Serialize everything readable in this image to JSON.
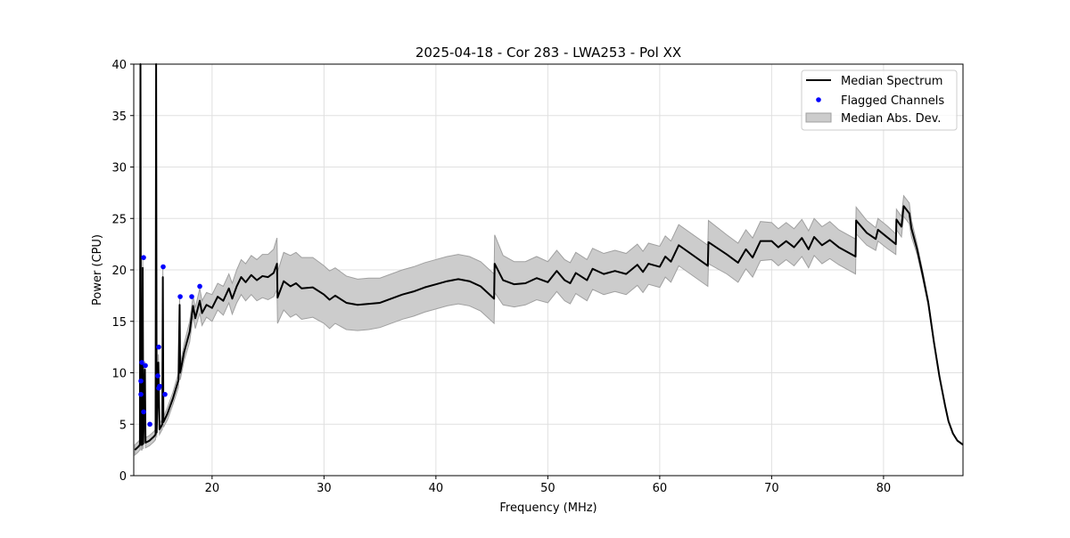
{
  "chart_data": {
    "type": "line",
    "title": "2025-04-18 - Cor 283 - LWA253 - Pol XX",
    "xlabel": "Frequency (MHz)",
    "ylabel": "Power (CPU)",
    "xlim": [
      13.0,
      87.1
    ],
    "ylim": [
      0,
      40
    ],
    "xticks": [
      20,
      30,
      40,
      50,
      60,
      70,
      80
    ],
    "yticks": [
      0,
      5,
      10,
      15,
      20,
      25,
      30,
      35,
      40
    ],
    "grid": true,
    "legend": {
      "placement": "top-right",
      "entries": [
        "Median Spectrum",
        "Flagged Channels",
        "Median Abs. Dev."
      ]
    },
    "colors": {
      "median": "#000000",
      "flagged": "#0000ff",
      "mad_fill": "#cccccc",
      "mad_edge": "#a0a0a0"
    },
    "series": [
      {
        "name": "Median Spectrum",
        "columns": [
          "freq_mhz",
          "median",
          "mad"
        ],
        "points": [
          [
            13.1,
            2.5,
            0.5
          ],
          [
            13.4,
            2.8,
            0.5
          ],
          [
            13.55,
            3,
            0.5
          ],
          [
            13.6,
            40,
            3
          ],
          [
            13.65,
            3,
            0.5
          ],
          [
            13.75,
            3,
            0.5
          ],
          [
            13.8,
            20.2,
            1
          ],
          [
            13.85,
            3.1,
            0.5
          ],
          [
            14.0,
            10.3,
            0.8
          ],
          [
            14.05,
            3.2,
            0.5
          ],
          [
            14.4,
            3.4,
            0.5
          ],
          [
            14.8,
            3.8,
            0.5
          ],
          [
            14.95,
            4,
            0.5
          ],
          [
            15.0,
            40,
            3
          ],
          [
            15.05,
            4.2,
            0.5
          ],
          [
            15.2,
            11,
            0.8
          ],
          [
            15.3,
            4.5,
            0.5
          ],
          [
            15.55,
            5,
            0.5
          ],
          [
            15.6,
            19.3,
            1
          ],
          [
            15.65,
            5.2,
            0.5
          ],
          [
            16.0,
            6,
            0.6
          ],
          [
            16.5,
            7.5,
            0.6
          ],
          [
            17.0,
            9.3,
            0.7
          ],
          [
            17.1,
            16.6,
            1
          ],
          [
            17.15,
            10,
            0.7
          ],
          [
            17.5,
            12,
            0.8
          ],
          [
            18.0,
            14,
            1
          ],
          [
            18.3,
            16.5,
            1
          ],
          [
            18.5,
            15.3,
            1
          ],
          [
            18.9,
            17,
            1.2
          ],
          [
            19.1,
            15.8,
            1.2
          ],
          [
            19.5,
            16.6,
            1.2
          ],
          [
            20.0,
            16.3,
            1.3
          ],
          [
            20.5,
            17.4,
            1.3
          ],
          [
            21.0,
            17.0,
            1.4
          ],
          [
            21.5,
            18.2,
            1.4
          ],
          [
            21.8,
            17.2,
            1.5
          ],
          [
            22.2,
            18.4,
            1.6
          ],
          [
            22.6,
            19.3,
            1.7
          ],
          [
            23.0,
            18.8,
            1.8
          ],
          [
            23.5,
            19.5,
            1.9
          ],
          [
            24.0,
            19.0,
            2.0
          ],
          [
            24.5,
            19.4,
            2.1
          ],
          [
            25.0,
            19.3,
            2.2
          ],
          [
            25.5,
            19.7,
            2.3
          ],
          [
            25.8,
            20.6,
            2.5
          ],
          [
            25.85,
            17.3,
            2.5
          ],
          [
            26.4,
            18.9,
            2.8
          ],
          [
            27.0,
            18.4,
            3.0
          ],
          [
            27.5,
            18.7,
            3.0
          ],
          [
            28.0,
            18.2,
            3.0
          ],
          [
            29.0,
            18.3,
            2.9
          ],
          [
            30.0,
            17.6,
            2.8
          ],
          [
            30.5,
            17.1,
            2.8
          ],
          [
            31.0,
            17.5,
            2.7
          ],
          [
            32.0,
            16.8,
            2.6
          ],
          [
            33.0,
            16.6,
            2.5
          ],
          [
            34.0,
            16.7,
            2.5
          ],
          [
            35.0,
            16.8,
            2.4
          ],
          [
            36.0,
            17.2,
            2.4
          ],
          [
            37.0,
            17.6,
            2.4
          ],
          [
            38.0,
            17.9,
            2.4
          ],
          [
            39.0,
            18.3,
            2.4
          ],
          [
            40.0,
            18.6,
            2.4
          ],
          [
            41.0,
            18.9,
            2.4
          ],
          [
            42.0,
            19.1,
            2.4
          ],
          [
            43.0,
            18.9,
            2.4
          ],
          [
            44.0,
            18.4,
            2.4
          ],
          [
            45.2,
            17.2,
            2.4
          ],
          [
            45.25,
            20.6,
            2.8
          ],
          [
            46.0,
            19.0,
            2.4
          ],
          [
            47.0,
            18.6,
            2.2
          ],
          [
            48.0,
            18.7,
            2.1
          ],
          [
            49.0,
            19.2,
            2.1
          ],
          [
            50.0,
            18.8,
            2.0
          ],
          [
            50.8,
            19.9,
            2.0
          ],
          [
            51.5,
            19.0,
            2.0
          ],
          [
            52.0,
            18.7,
            2.0
          ],
          [
            52.5,
            19.7,
            2.0
          ],
          [
            53.5,
            19.0,
            2.0
          ],
          [
            54.0,
            20.1,
            2.0
          ],
          [
            55.0,
            19.6,
            2.0
          ],
          [
            56.0,
            19.9,
            2.0
          ],
          [
            57.0,
            19.6,
            2.0
          ],
          [
            58.0,
            20.5,
            2.0
          ],
          [
            58.5,
            19.8,
            2.0
          ],
          [
            59.0,
            20.6,
            2.0
          ],
          [
            60.0,
            20.3,
            2.0
          ],
          [
            60.5,
            21.3,
            2.0
          ],
          [
            61.0,
            20.8,
            2.0
          ],
          [
            61.7,
            22.4,
            2.0
          ],
          [
            64.3,
            20.4,
            2.0
          ],
          [
            64.35,
            22.7,
            2.1
          ],
          [
            66.0,
            21.5,
            1.9
          ],
          [
            67.0,
            20.7,
            1.9
          ],
          [
            67.7,
            22.0,
            1.9
          ],
          [
            68.3,
            21.2,
            1.9
          ],
          [
            69.0,
            22.8,
            1.9
          ],
          [
            70.0,
            22.8,
            1.8
          ],
          [
            70.6,
            22.2,
            1.8
          ],
          [
            71.3,
            22.8,
            1.8
          ],
          [
            72.0,
            22.2,
            1.8
          ],
          [
            72.7,
            23.1,
            1.8
          ],
          [
            73.3,
            22.0,
            1.8
          ],
          [
            73.8,
            23.2,
            1.8
          ],
          [
            74.5,
            22.4,
            1.8
          ],
          [
            75.2,
            22.9,
            1.8
          ],
          [
            76.0,
            22.2,
            1.7
          ],
          [
            77.5,
            21.3,
            1.7
          ],
          [
            77.55,
            24.8,
            1.3
          ],
          [
            78.5,
            23.6,
            1.2
          ],
          [
            79.3,
            23.0,
            1.1
          ],
          [
            79.5,
            23.9,
            1.1
          ],
          [
            80.3,
            23.2,
            1.1
          ],
          [
            81.1,
            22.5,
            1.0
          ],
          [
            81.15,
            24.9,
            1.0
          ],
          [
            81.6,
            24.2,
            1.0
          ],
          [
            81.8,
            26.2,
            1.0
          ],
          [
            82.3,
            25.5,
            1.0
          ],
          [
            82.5,
            24.0,
            0.8
          ],
          [
            83.0,
            22.0,
            0.5
          ],
          [
            83.5,
            19.5,
            0.4
          ],
          [
            84.0,
            16.8,
            0.3
          ],
          [
            84.5,
            13.0,
            0.2
          ],
          [
            85.0,
            9.6,
            0.1
          ],
          [
            85.5,
            6.8,
            0.1
          ],
          [
            85.8,
            5.3,
            0.05
          ],
          [
            86.2,
            4.1,
            0.05
          ],
          [
            86.6,
            3.4,
            0.05
          ],
          [
            87.1,
            3.0,
            0.05
          ]
        ]
      },
      {
        "name": "Flagged Channels",
        "points": [
          [
            13.88,
            21.2
          ],
          [
            15.63,
            20.3
          ],
          [
            18.9,
            18.4
          ],
          [
            17.15,
            17.4
          ],
          [
            18.18,
            17.4
          ],
          [
            15.23,
            12.5
          ],
          [
            13.72,
            11.0
          ],
          [
            14.04,
            10.7
          ],
          [
            13.64,
            9.2
          ],
          [
            15.15,
            9.7
          ],
          [
            15.31,
            8.7
          ],
          [
            15.23,
            8.5
          ],
          [
            13.64,
            7.9
          ],
          [
            15.79,
            7.9
          ],
          [
            13.88,
            6.2
          ],
          [
            14.44,
            5.0
          ]
        ]
      }
    ]
  }
}
